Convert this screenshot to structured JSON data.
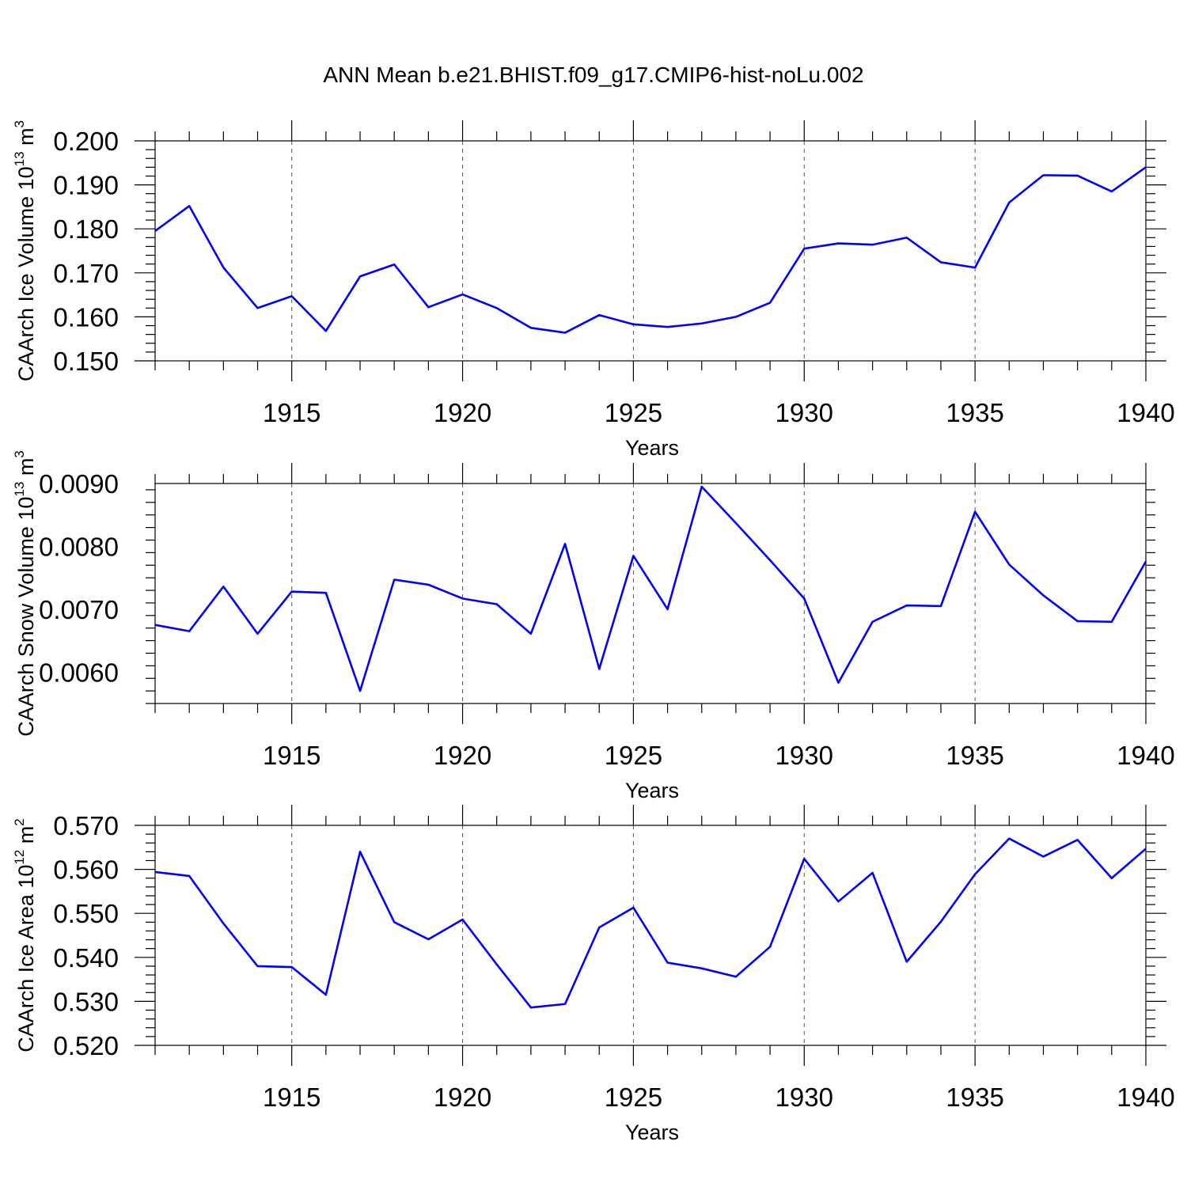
{
  "title": "ANN Mean b.e21.BHIST.f09_g17.CMIP6-hist-noLu.002",
  "colors": {
    "line": "#0000ff",
    "frame": "#000000",
    "grid": "#555555"
  },
  "chart_data": [
    {
      "type": "line",
      "ylabel": "CAArch Ice Volume 10",
      "ylabel_exp": "13",
      "ylabel_unit": " m",
      "ylabel_unit_exp": "3",
      "xlabel": "Years",
      "xlim": [
        1911,
        1940
      ],
      "ylim": [
        0.15,
        0.2
      ],
      "yticks": [
        0.15,
        0.16,
        0.17,
        0.18,
        0.19,
        0.2
      ],
      "yticklabels": [
        "0.150",
        "0.160",
        "0.170",
        "0.180",
        "0.190",
        "0.200"
      ],
      "xticks": [
        1915,
        1920,
        1925,
        1930,
        1935,
        1940
      ],
      "xticklabels": [
        "1915",
        "1920",
        "1925",
        "1930",
        "1935",
        "1940"
      ],
      "grid": "dashed vertical at major x ticks",
      "x": [
        1911,
        1912,
        1913,
        1914,
        1915,
        1916,
        1917,
        1918,
        1919,
        1920,
        1921,
        1922,
        1923,
        1924,
        1925,
        1926,
        1927,
        1928,
        1929,
        1930,
        1931,
        1932,
        1933,
        1934,
        1935,
        1936,
        1937,
        1938,
        1939,
        1940
      ],
      "y": [
        0.1795,
        0.1852,
        0.1712,
        0.162,
        0.1647,
        0.1568,
        0.1692,
        0.1719,
        0.1622,
        0.1651,
        0.162,
        0.1575,
        0.1564,
        0.1604,
        0.1583,
        0.1577,
        0.1585,
        0.16,
        0.1632,
        0.1755,
        0.1767,
        0.1764,
        0.178,
        0.1724,
        0.1712,
        0.186,
        0.1922,
        0.1921,
        0.1885,
        0.194
      ]
    },
    {
      "type": "line",
      "ylabel": "CAArch Snow Volume 10",
      "ylabel_exp": "13",
      "ylabel_unit": " m",
      "ylabel_unit_exp": "3",
      "xlabel": "Years",
      "xlim": [
        1911,
        1940
      ],
      "ylim": [
        0.0055,
        0.009
      ],
      "yticks": [
        0.006,
        0.007,
        0.008,
        0.009
      ],
      "yticklabels": [
        "0.0060",
        "0.0070",
        "0.0080",
        "0.0090"
      ],
      "xticks": [
        1915,
        1920,
        1925,
        1930,
        1935,
        1940
      ],
      "xticklabels": [
        "1915",
        "1920",
        "1925",
        "1930",
        "1935",
        "1940"
      ],
      "grid": "dashed vertical at major x ticks",
      "x": [
        1911,
        1912,
        1913,
        1914,
        1915,
        1916,
        1917,
        1918,
        1919,
        1920,
        1921,
        1922,
        1923,
        1924,
        1925,
        1926,
        1927,
        1928,
        1929,
        1930,
        1931,
        1932,
        1933,
        1934,
        1935,
        1936,
        1937,
        1938,
        1939,
        1940
      ],
      "y": [
        0.00675,
        0.00665,
        0.00736,
        0.00661,
        0.00728,
        0.00726,
        0.0057,
        0.00747,
        0.00739,
        0.00717,
        0.00708,
        0.00661,
        0.00804,
        0.00605,
        0.00785,
        0.007,
        0.00895,
        0.00837,
        0.00778,
        0.00717,
        0.00583,
        0.0068,
        0.00706,
        0.00705,
        0.00855,
        0.00771,
        0.00722,
        0.00681,
        0.0068,
        0.00776
      ]
    },
    {
      "type": "line",
      "ylabel": "CAArch Ice Area 10",
      "ylabel_exp": "12",
      "ylabel_unit": " m",
      "ylabel_unit_exp": "2",
      "xlabel": "Years",
      "xlim": [
        1911,
        1940
      ],
      "ylim": [
        0.52,
        0.57
      ],
      "yticks": [
        0.52,
        0.53,
        0.54,
        0.55,
        0.56,
        0.57
      ],
      "yticklabels": [
        "0.520",
        "0.530",
        "0.540",
        "0.550",
        "0.560",
        "0.570"
      ],
      "xticks": [
        1915,
        1920,
        1925,
        1930,
        1935,
        1940
      ],
      "xticklabels": [
        "1915",
        "1920",
        "1925",
        "1930",
        "1935",
        "1940"
      ],
      "grid": "dashed vertical at major x ticks",
      "x": [
        1911,
        1912,
        1913,
        1914,
        1915,
        1916,
        1917,
        1918,
        1919,
        1920,
        1921,
        1922,
        1923,
        1924,
        1925,
        1926,
        1927,
        1928,
        1929,
        1930,
        1931,
        1932,
        1933,
        1934,
        1935,
        1936,
        1937,
        1938,
        1939,
        1940
      ],
      "y": [
        0.5594,
        0.5585,
        0.5477,
        0.538,
        0.5378,
        0.5315,
        0.564,
        0.548,
        0.5441,
        0.5486,
        0.5384,
        0.5286,
        0.5294,
        0.5468,
        0.5513,
        0.5388,
        0.5375,
        0.5356,
        0.5424,
        0.5624,
        0.5527,
        0.5592,
        0.539,
        0.5481,
        0.5589,
        0.567,
        0.5629,
        0.5667,
        0.558,
        0.5647
      ]
    }
  ]
}
